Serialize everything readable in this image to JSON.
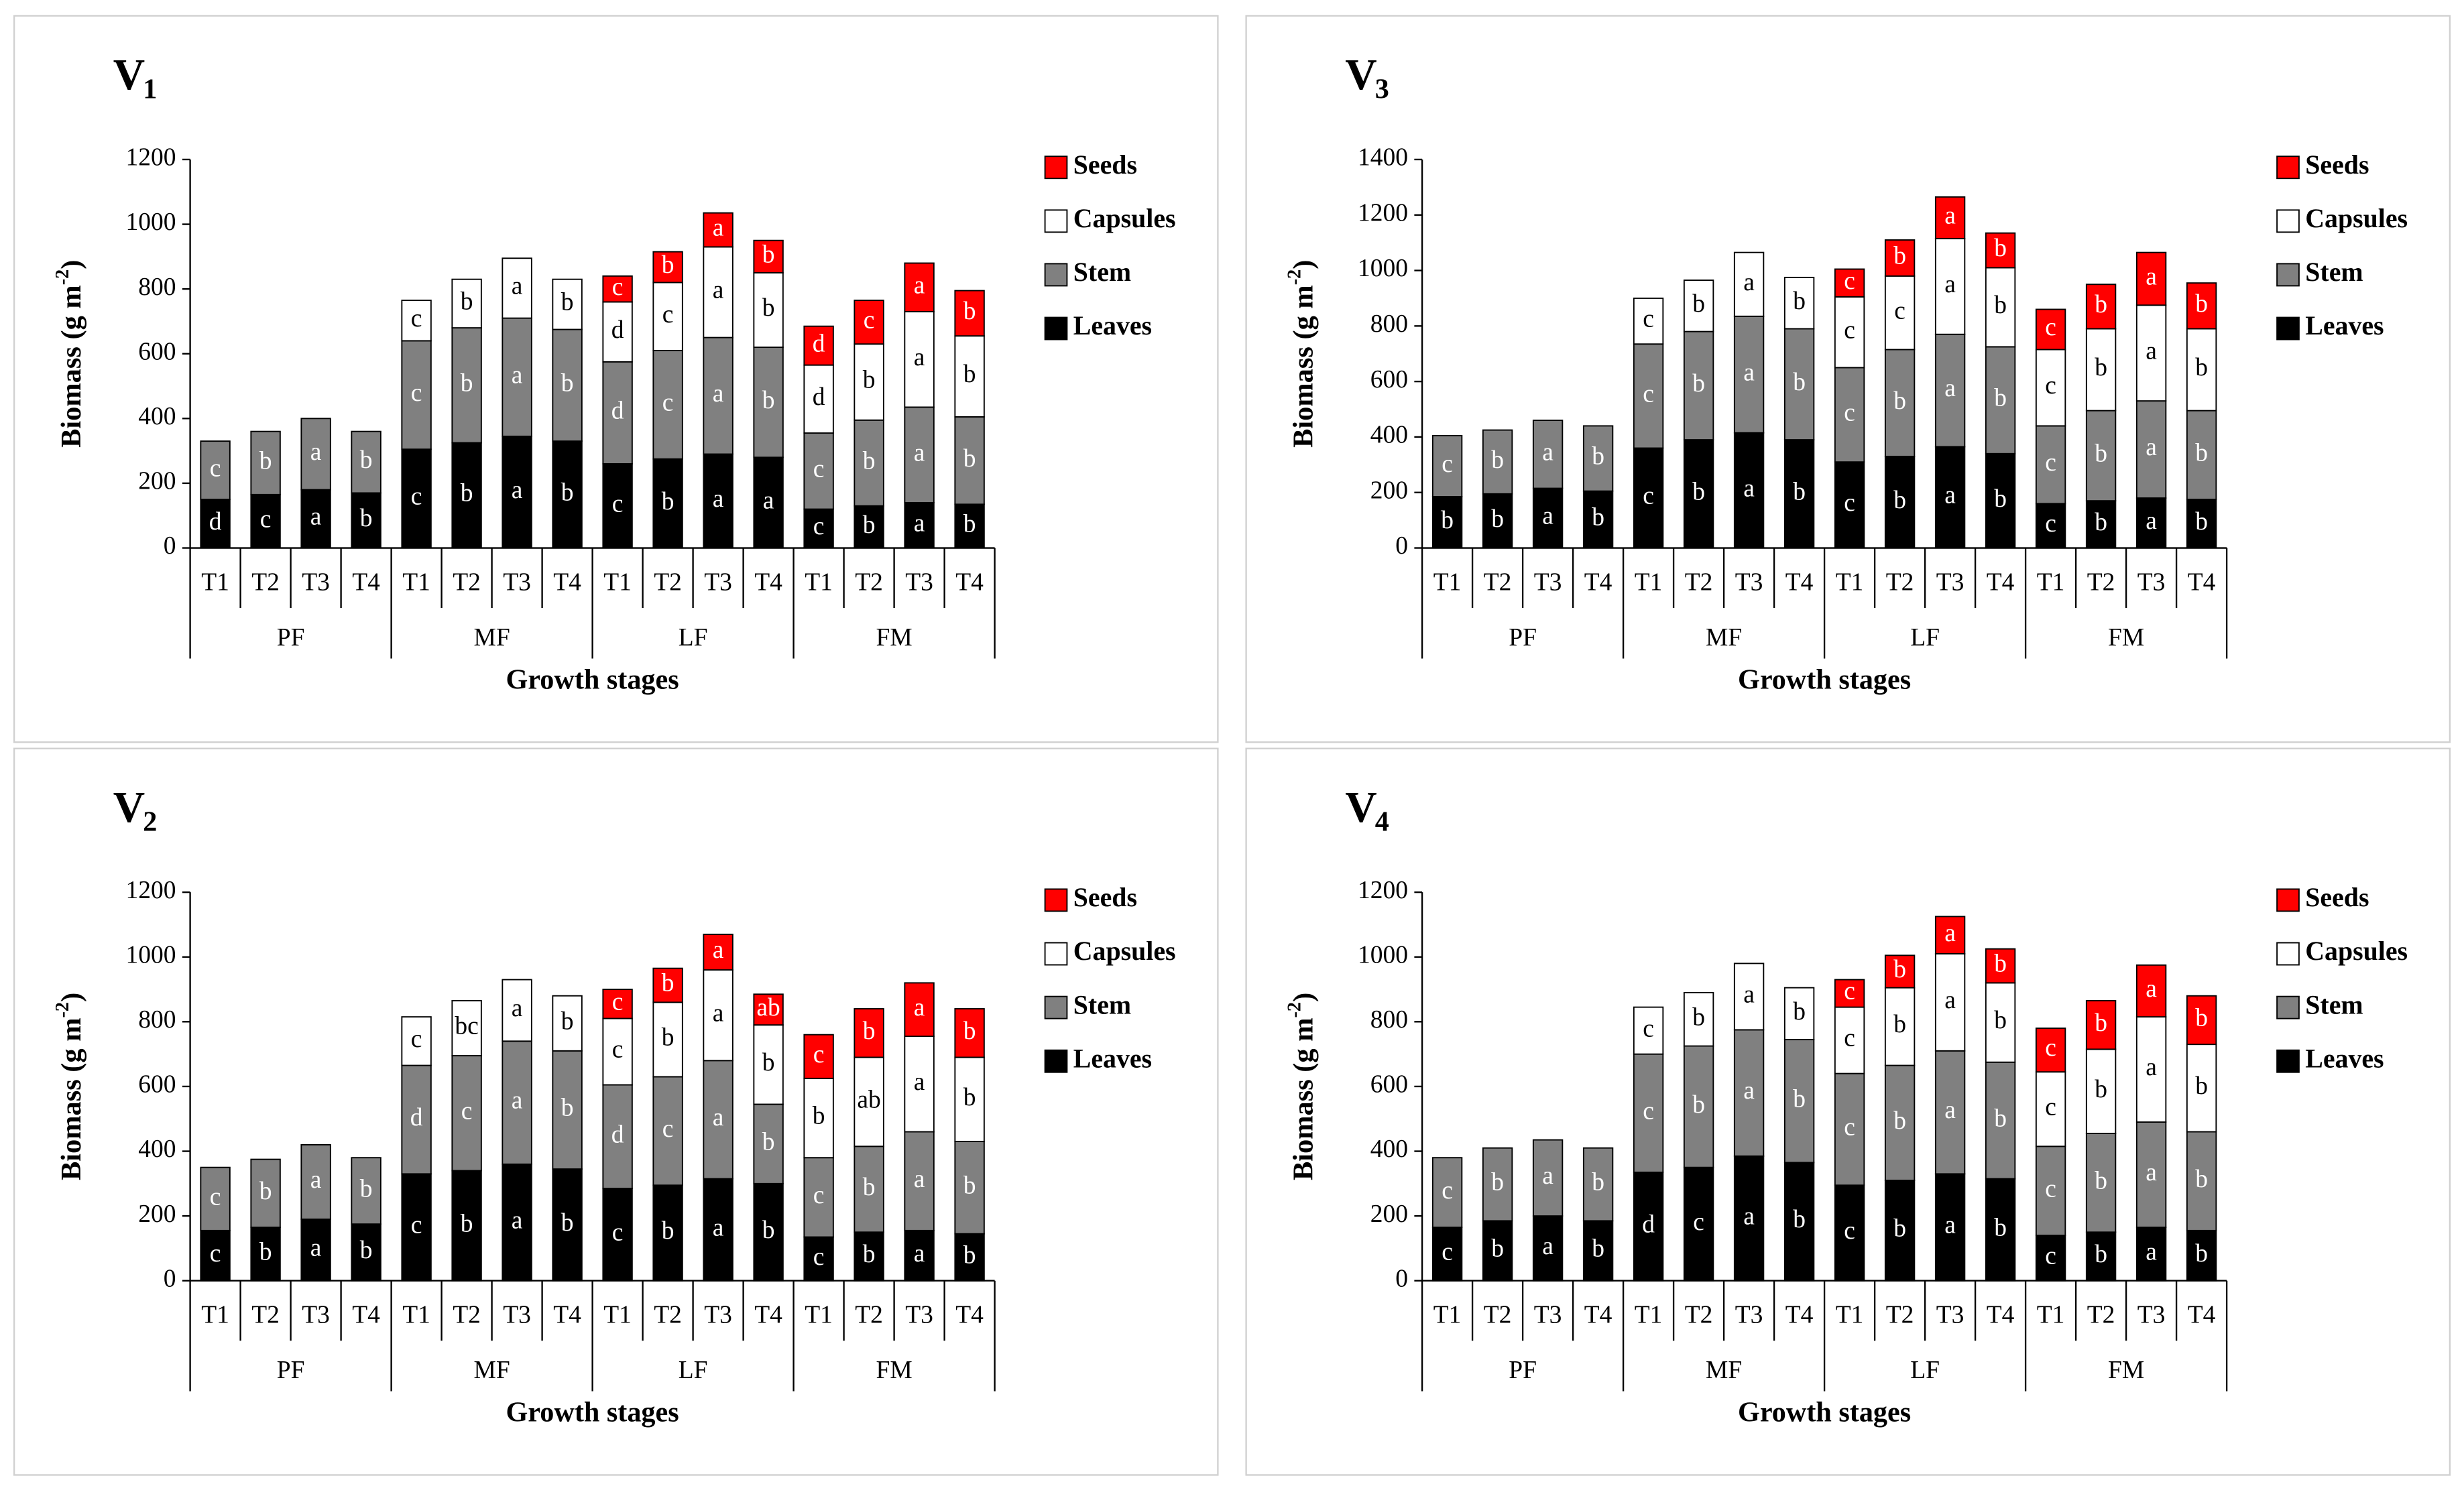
{
  "chart_data": [
    {
      "type": "stacked_bar",
      "title": "V",
      "title_subscript": "1",
      "ylabel": "Biomass (g m",
      "ylabel_superscript": "-2",
      "ylabel_end": ")",
      "xlabel": "Growth stages",
      "categories": [
        "T1",
        "T2",
        "T3",
        "T4",
        "T1",
        "T2",
        "T3",
        "T4",
        "T1",
        "T2",
        "T3",
        "T4",
        "T1",
        "T2",
        "T3",
        "T4"
      ],
      "group_labels": [
        "PF",
        "MF",
        "LF",
        "FM"
      ],
      "ylim": [
        0,
        1200
      ],
      "yticks": [
        0,
        200,
        400,
        600,
        800,
        1000,
        1200
      ],
      "grid": false,
      "legend": "right",
      "series": [
        {
          "name": "Leaves",
          "color": "#000000",
          "letter_color": "#ffffff",
          "values": [
            150,
            165,
            180,
            170,
            305,
            325,
            345,
            330,
            260,
            275,
            290,
            280,
            120,
            130,
            140,
            135
          ],
          "letters": [
            "d",
            "c",
            "a",
            "b",
            "c",
            "b",
            "a",
            "b",
            "c",
            "b",
            "a",
            "a",
            "c",
            "b",
            "a",
            "b"
          ]
        },
        {
          "name": "Stem",
          "color": "#808080",
          "letter_color": "#ffffff",
          "values": [
            180,
            195,
            220,
            190,
            335,
            355,
            365,
            345,
            315,
            335,
            360,
            340,
            235,
            265,
            295,
            270
          ],
          "letters": [
            "c",
            "b",
            "a",
            "b",
            "c",
            "b",
            "a",
            "b",
            "d",
            "c",
            "a",
            "b",
            "c",
            "b",
            "a",
            "b"
          ]
        },
        {
          "name": "Capsules",
          "color": "#ffffff",
          "letter_color": "#000000",
          "values": [
            null,
            null,
            null,
            null,
            125,
            150,
            185,
            155,
            185,
            210,
            280,
            230,
            210,
            235,
            295,
            250
          ],
          "letters": [
            null,
            null,
            null,
            null,
            "c",
            "b",
            "a",
            "b",
            "d",
            "c",
            "a",
            "b",
            "d",
            "b",
            "a",
            "b"
          ]
        },
        {
          "name": "Seeds",
          "color": "#ff0000",
          "letter_color": "#ffffff",
          "values": [
            null,
            null,
            null,
            null,
            null,
            null,
            null,
            null,
            80,
            95,
            105,
            100,
            120,
            135,
            150,
            140
          ],
          "letters": [
            null,
            null,
            null,
            null,
            null,
            null,
            null,
            null,
            "c",
            "b",
            "a",
            "b",
            "d",
            "c",
            "a",
            "b"
          ]
        }
      ]
    },
    {
      "type": "stacked_bar",
      "title": "V",
      "title_subscript": "3",
      "ylabel": "Biomass (g m",
      "ylabel_superscript": "-2",
      "ylabel_end": ")",
      "xlabel": "Growth stages",
      "categories": [
        "T1",
        "T2",
        "T3",
        "T4",
        "T1",
        "T2",
        "T3",
        "T4",
        "T1",
        "T2",
        "T3",
        "T4",
        "T1",
        "T2",
        "T3",
        "T4"
      ],
      "group_labels": [
        "PF",
        "MF",
        "LF",
        "FM"
      ],
      "ylim": [
        0,
        1400
      ],
      "yticks": [
        0,
        200,
        400,
        600,
        800,
        1000,
        1200,
        1400
      ],
      "grid": false,
      "legend": "right",
      "series": [
        {
          "name": "Leaves",
          "color": "#000000",
          "letter_color": "#ffffff",
          "values": [
            185,
            195,
            215,
            205,
            360,
            390,
            415,
            390,
            310,
            330,
            365,
            340,
            160,
            170,
            180,
            175
          ],
          "letters": [
            "b",
            "b",
            "a",
            "b",
            "c",
            "b",
            "a",
            "b",
            "c",
            "b",
            "a",
            "b",
            "c",
            "b",
            "a",
            "b"
          ]
        },
        {
          "name": "Stem",
          "color": "#808080",
          "letter_color": "#ffffff",
          "values": [
            220,
            230,
            245,
            235,
            375,
            390,
            420,
            400,
            340,
            385,
            405,
            385,
            280,
            325,
            350,
            320
          ],
          "letters": [
            "c",
            "b",
            "a",
            "b",
            "c",
            "b",
            "a",
            "b",
            "c",
            "b",
            "a",
            "b",
            "c",
            "b",
            "a",
            "b"
          ]
        },
        {
          "name": "Capsules",
          "color": "#ffffff",
          "letter_color": "#000000",
          "values": [
            null,
            null,
            null,
            null,
            165,
            185,
            230,
            185,
            255,
            265,
            345,
            285,
            275,
            295,
            345,
            295
          ],
          "letters": [
            null,
            null,
            null,
            null,
            "c",
            "b",
            "a",
            "b",
            "c",
            "c",
            "a",
            "b",
            "c",
            "b",
            "a",
            "b"
          ]
        },
        {
          "name": "Seeds",
          "color": "#ff0000",
          "letter_color": "#ffffff",
          "values": [
            null,
            null,
            null,
            null,
            null,
            null,
            null,
            null,
            100,
            130,
            150,
            125,
            145,
            160,
            190,
            165
          ],
          "letters": [
            null,
            null,
            null,
            null,
            null,
            null,
            null,
            null,
            "c",
            "b",
            "a",
            "b",
            "c",
            "b",
            "a",
            "b"
          ]
        }
      ]
    },
    {
      "type": "stacked_bar",
      "title": "V",
      "title_subscript": "2",
      "ylabel": "Biomass (g m",
      "ylabel_superscript": "-2",
      "ylabel_end": ")",
      "xlabel": "Growth stages",
      "categories": [
        "T1",
        "T2",
        "T3",
        "T4",
        "T1",
        "T2",
        "T3",
        "T4",
        "T1",
        "T2",
        "T3",
        "T4",
        "T1",
        "T2",
        "T3",
        "T4"
      ],
      "group_labels": [
        "PF",
        "MF",
        "LF",
        "FM"
      ],
      "ylim": [
        0,
        1200
      ],
      "yticks": [
        0,
        200,
        400,
        600,
        800,
        1000,
        1200
      ],
      "grid": false,
      "legend": "right",
      "series": [
        {
          "name": "Leaves",
          "color": "#000000",
          "letter_color": "#ffffff",
          "values": [
            155,
            165,
            190,
            175,
            330,
            340,
            360,
            345,
            285,
            295,
            315,
            300,
            135,
            150,
            155,
            145
          ],
          "letters": [
            "c",
            "b",
            "a",
            "b",
            "c",
            "b",
            "a",
            "b",
            "c",
            "b",
            "a",
            "b",
            "c",
            "b",
            "a",
            "b"
          ]
        },
        {
          "name": "Stem",
          "color": "#808080",
          "letter_color": "#ffffff",
          "values": [
            195,
            210,
            230,
            205,
            335,
            355,
            380,
            365,
            320,
            335,
            365,
            245,
            245,
            265,
            305,
            285
          ],
          "letters": [
            "c",
            "b",
            "a",
            "b",
            "d",
            "c",
            "a",
            "b",
            "d",
            "c",
            "a",
            "b",
            "c",
            "b",
            "a",
            "b"
          ]
        },
        {
          "name": "Capsules",
          "color": "#ffffff",
          "letter_color": "#000000",
          "values": [
            null,
            null,
            null,
            null,
            150,
            170,
            190,
            170,
            205,
            230,
            280,
            245,
            245,
            275,
            295,
            260
          ],
          "letters": [
            null,
            null,
            null,
            null,
            "c",
            "bc",
            "a",
            "b",
            "c",
            "b",
            "a",
            "b",
            "b",
            "ab",
            "a",
            "b"
          ]
        },
        {
          "name": "Seeds",
          "color": "#ff0000",
          "letter_color": "#ffffff",
          "values": [
            null,
            null,
            null,
            null,
            null,
            null,
            null,
            null,
            90,
            105,
            110,
            95,
            135,
            150,
            165,
            150
          ],
          "letters": [
            null,
            null,
            null,
            null,
            null,
            null,
            null,
            null,
            "c",
            "b",
            "a",
            "ab",
            "c",
            "b",
            "a",
            "b"
          ]
        }
      ]
    },
    {
      "type": "stacked_bar",
      "title": "V",
      "title_subscript": "4",
      "ylabel": "Biomass (g m",
      "ylabel_superscript": "-2",
      "ylabel_end": ")",
      "xlabel": "Growth stages",
      "categories": [
        "T1",
        "T2",
        "T3",
        "T4",
        "T1",
        "T2",
        "T3",
        "T4",
        "T1",
        "T2",
        "T3",
        "T4",
        "T1",
        "T2",
        "T3",
        "T4"
      ],
      "group_labels": [
        "PF",
        "MF",
        "LF",
        "FM"
      ],
      "ylim": [
        0,
        1200
      ],
      "yticks": [
        0,
        200,
        400,
        600,
        800,
        1000,
        1200
      ],
      "grid": false,
      "legend": "right",
      "series": [
        {
          "name": "Leaves",
          "color": "#000000",
          "letter_color": "#ffffff",
          "values": [
            165,
            185,
            200,
            185,
            335,
            350,
            385,
            365,
            295,
            310,
            330,
            315,
            140,
            150,
            165,
            155
          ],
          "letters": [
            "c",
            "b",
            "a",
            "b",
            "d",
            "c",
            "a",
            "b",
            "c",
            "b",
            "a",
            "b",
            "c",
            "b",
            "a",
            "b"
          ]
        },
        {
          "name": "Stem",
          "color": "#808080",
          "letter_color": "#ffffff",
          "values": [
            215,
            225,
            235,
            225,
            365,
            375,
            390,
            380,
            345,
            355,
            380,
            360,
            275,
            305,
            325,
            305
          ],
          "letters": [
            "c",
            "b",
            "a",
            "b",
            "c",
            "b",
            "a",
            "b",
            "c",
            "b",
            "a",
            "b",
            "c",
            "b",
            "a",
            "b"
          ]
        },
        {
          "name": "Capsules",
          "color": "#ffffff",
          "letter_color": "#000000",
          "values": [
            null,
            null,
            null,
            null,
            145,
            165,
            205,
            160,
            205,
            240,
            300,
            245,
            230,
            260,
            325,
            270
          ],
          "letters": [
            null,
            null,
            null,
            null,
            "c",
            "b",
            "a",
            "b",
            "c",
            "b",
            "a",
            "b",
            "c",
            "b",
            "a",
            "b"
          ]
        },
        {
          "name": "Seeds",
          "color": "#ff0000",
          "letter_color": "#ffffff",
          "values": [
            null,
            null,
            null,
            null,
            null,
            null,
            null,
            null,
            85,
            100,
            115,
            105,
            135,
            150,
            160,
            150
          ],
          "letters": [
            null,
            null,
            null,
            null,
            null,
            null,
            null,
            null,
            "c",
            "b",
            "a",
            "b",
            "c",
            "b",
            "a",
            "b"
          ]
        }
      ]
    }
  ]
}
